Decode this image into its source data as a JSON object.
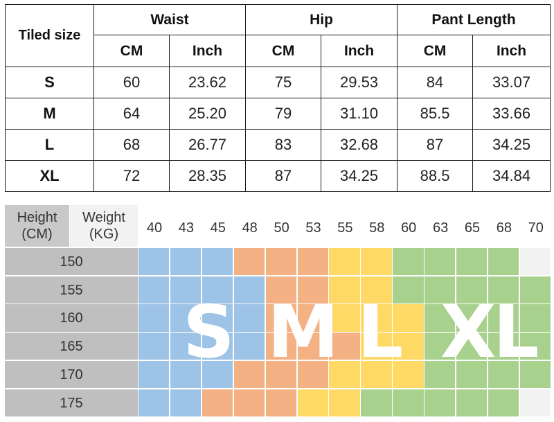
{
  "size_table": {
    "corner_label": "Tiled size",
    "groups": [
      {
        "label": "Waist",
        "units": [
          "CM",
          "Inch"
        ]
      },
      {
        "label": "Hip",
        "units": [
          "CM",
          "Inch"
        ]
      },
      {
        "label": "Pant Length",
        "units": [
          "CM",
          "Inch"
        ]
      }
    ],
    "rows": [
      {
        "size": "S",
        "values": [
          "60",
          "23.62",
          "75",
          "29.53",
          "84",
          "33.07"
        ]
      },
      {
        "size": "M",
        "values": [
          "64",
          "25.20",
          "79",
          "31.10",
          "85.5",
          "33.66"
        ]
      },
      {
        "size": "L",
        "values": [
          "68",
          "26.77",
          "83",
          "32.68",
          "87",
          "34.25"
        ]
      },
      {
        "size": "XL",
        "values": [
          "72",
          "28.35",
          "87",
          "34.25",
          "88.5",
          "34.84"
        ]
      }
    ]
  },
  "fit_chart": {
    "height_header": [
      "Height",
      "(CM)"
    ],
    "weight_header": [
      "Weight",
      "(KG)"
    ],
    "weights": [
      "40",
      "43",
      "45",
      "48",
      "50",
      "53",
      "55",
      "58",
      "60",
      "63",
      "65",
      "68",
      "70"
    ],
    "heights": [
      "150",
      "155",
      "160",
      "165",
      "170",
      "175"
    ],
    "size_letters": [
      "S",
      "M",
      "L",
      "XL"
    ],
    "colors": {
      "S": "#9dc3e6",
      "M": "#f4b183",
      "L": "#ffd966",
      "XL": "#a9d18e",
      "none": "#f2f2f2",
      "header": "#c9c9c9",
      "height_col": "#bfbfbf"
    },
    "grid": [
      [
        "S",
        "S",
        "S",
        "M",
        "M",
        "M",
        "L",
        "L",
        "XL",
        "XL",
        "XL",
        "XL",
        "none"
      ],
      [
        "S",
        "S",
        "S",
        "S",
        "M",
        "M",
        "L",
        "L",
        "XL",
        "XL",
        "XL",
        "XL",
        "XL"
      ],
      [
        "S",
        "S",
        "S",
        "S",
        "M",
        "M",
        "L",
        "L",
        "L",
        "XL",
        "XL",
        "XL",
        "XL"
      ],
      [
        "S",
        "S",
        "S",
        "S",
        "M",
        "M",
        "M",
        "L",
        "L",
        "XL",
        "XL",
        "XL",
        "XL"
      ],
      [
        "S",
        "S",
        "S",
        "M",
        "M",
        "M",
        "L",
        "L",
        "L",
        "XL",
        "XL",
        "XL",
        "XL"
      ],
      [
        "S",
        "S",
        "M",
        "M",
        "M",
        "L",
        "L",
        "XL",
        "XL",
        "XL",
        "XL",
        "XL",
        "none"
      ]
    ]
  }
}
